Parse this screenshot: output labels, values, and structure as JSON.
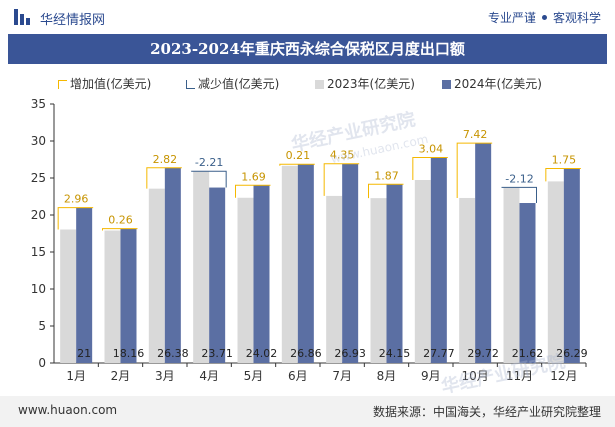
{
  "header": {
    "brand": "华经情报网",
    "tagline_left": "专业严谨",
    "tagline_right": "客观科学"
  },
  "watermark": {
    "text": "华经产业研究院",
    "url": "www.huaon.com"
  },
  "colors": {
    "bar_2023": "#d9d9d9",
    "bar_2024": "#5b6fa3",
    "increase": "#f5b800",
    "decrease": "#3a5f8a",
    "title_bg": "#3a5597"
  },
  "legend": {
    "increase": "增加值(亿美元)",
    "decrease": "减少值(亿美元)",
    "y2023": "2023年(亿美元)",
    "y2024": "2024年(亿美元)"
  },
  "chart_data": {
    "type": "bar",
    "title": "2023-2024年重庆西永综合保税区月度出口额",
    "categories": [
      "1月",
      "2月",
      "3月",
      "4月",
      "5月",
      "6月",
      "7月",
      "8月",
      "9月",
      "10月",
      "11月",
      "12月"
    ],
    "series": [
      {
        "name": "2023年(亿美元)",
        "values": [
          18.04,
          17.9,
          23.56,
          25.92,
          22.33,
          26.65,
          22.58,
          22.28,
          24.73,
          22.3,
          23.74,
          24.54
        ]
      },
      {
        "name": "2024年(亿美元)",
        "values": [
          21,
          18.16,
          26.38,
          23.71,
          24.02,
          26.86,
          26.93,
          24.15,
          27.77,
          29.72,
          21.62,
          26.29
        ]
      }
    ],
    "changes": [
      2.96,
      0.26,
      2.82,
      -2.21,
      1.69,
      0.21,
      4.35,
      1.87,
      3.04,
      7.42,
      -2.12,
      1.75
    ],
    "change_labels": [
      "2.96",
      "0.26",
      "2.82",
      "-2.21",
      "1.69",
      "0.21",
      "4.35",
      "1.87",
      "3.04",
      "7.42",
      "-2.12",
      "1.75"
    ],
    "value_labels_2024": [
      "21",
      "18.16",
      "26.38",
      "23.71",
      "24.02",
      "26.86",
      "26.93",
      "24.15",
      "27.77",
      "29.72",
      "21.62",
      "26.29"
    ],
    "ylim": [
      0,
      35
    ],
    "yticks": [
      0,
      5,
      10,
      15,
      20,
      25,
      30,
      35
    ],
    "grid": false,
    "legend_position": "top"
  },
  "footer": {
    "url": "www.huaon.com",
    "source": "数据来源：中国海关，华经产业研究院整理"
  }
}
